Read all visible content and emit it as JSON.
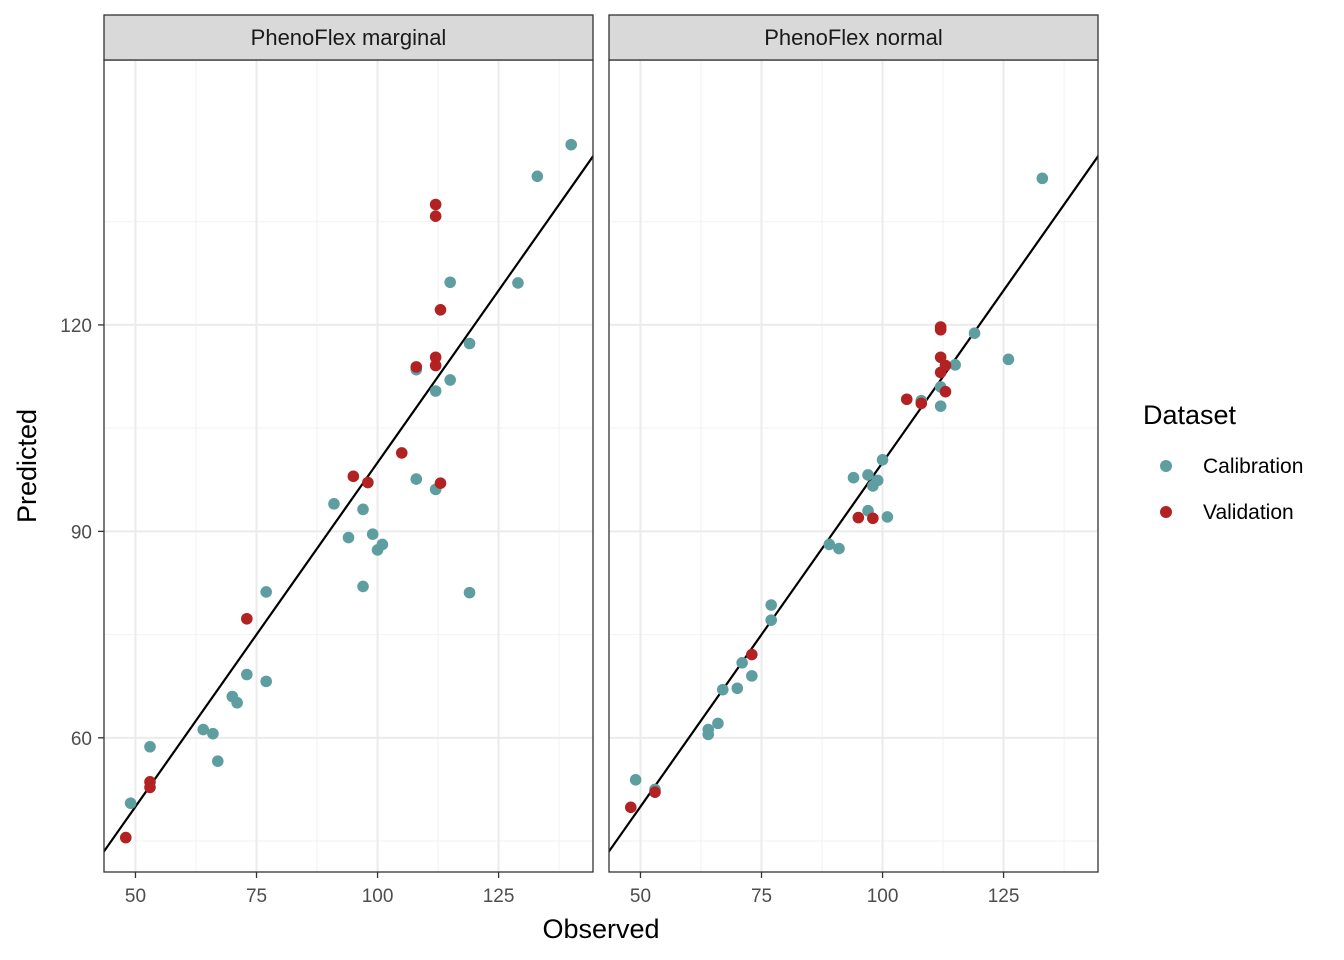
{
  "chart_data": {
    "type": "scatter",
    "xlabel": "Observed",
    "ylabel": "Predicted",
    "xlim": [
      43.5,
      144.5
    ],
    "ylim": [
      40.5,
      158.5
    ],
    "x_ticks": [
      50,
      75,
      100,
      125
    ],
    "y_ticks": [
      60,
      90,
      120
    ],
    "x_minor": [
      62.5,
      87.5,
      112.5,
      137.5
    ],
    "y_minor": [
      45,
      75,
      105,
      135
    ],
    "grid": true,
    "legend": {
      "title": "Dataset",
      "position": "right",
      "entries": [
        {
          "label": "Calibration",
          "color": "#5F9EA0"
        },
        {
          "label": "Validation",
          "color": "#B22222"
        }
      ]
    },
    "reference_line": {
      "type": "identity",
      "color": "#000000"
    },
    "panels": [
      {
        "title": "PhenoFlex marginal",
        "series": [
          {
            "name": "Calibration",
            "color": "#5F9EA0",
            "points": [
              [
                49,
                50.5
              ],
              [
                53,
                58.7
              ],
              [
                64,
                61.2
              ],
              [
                66,
                60.6
              ],
              [
                67,
                56.6
              ],
              [
                70,
                66.0
              ],
              [
                71,
                65.1
              ],
              [
                73,
                69.2
              ],
              [
                77,
                68.2
              ],
              [
                77,
                81.2
              ],
              [
                91,
                94.0
              ],
              [
                94,
                89.1
              ],
              [
                97,
                93.2
              ],
              [
                97,
                82.0
              ],
              [
                99,
                89.6
              ],
              [
                100,
                87.3
              ],
              [
                101,
                88.1
              ],
              [
                108,
                113.5
              ],
              [
                108,
                97.6
              ],
              [
                112,
                110.4
              ],
              [
                112,
                96.1
              ],
              [
                115,
                112.0
              ],
              [
                115,
                126.2
              ],
              [
                119,
                117.3
              ],
              [
                119,
                81.1
              ],
              [
                129,
                126.1
              ],
              [
                133,
                141.6
              ],
              [
                140,
                146.2
              ]
            ]
          },
          {
            "name": "Validation",
            "color": "#B22222",
            "points": [
              [
                48,
                45.5
              ],
              [
                53,
                53.6
              ],
              [
                53,
                52.8
              ],
              [
                73,
                77.3
              ],
              [
                95,
                98.0
              ],
              [
                98,
                97.1
              ],
              [
                105,
                101.4
              ],
              [
                108,
                113.9
              ],
              [
                112,
                115.3
              ],
              [
                112,
                114.1
              ],
              [
                112,
                137.5
              ],
              [
                112,
                135.8
              ],
              [
                113,
                122.2
              ],
              [
                113,
                97.0
              ]
            ]
          }
        ]
      },
      {
        "title": "PhenoFlex normal",
        "series": [
          {
            "name": "Calibration",
            "color": "#5F9EA0",
            "points": [
              [
                49,
                53.9
              ],
              [
                53,
                52.5
              ],
              [
                64,
                61.2
              ],
              [
                64,
                60.5
              ],
              [
                66,
                62.1
              ],
              [
                67,
                67.0
              ],
              [
                70,
                67.2
              ],
              [
                71,
                70.9
              ],
              [
                73,
                69.0
              ],
              [
                77,
                79.3
              ],
              [
                77,
                77.1
              ],
              [
                89,
                88.1
              ],
              [
                91,
                87.5
              ],
              [
                94,
                97.8
              ],
              [
                97,
                98.2
              ],
              [
                97,
                93.0
              ],
              [
                98,
                96.6
              ],
              [
                99,
                97.4
              ],
              [
                100,
                100.4
              ],
              [
                101,
                92.1
              ],
              [
                108,
                109.0
              ],
              [
                112,
                111.0
              ],
              [
                112,
                108.2
              ],
              [
                115,
                114.2
              ],
              [
                119,
                118.8
              ],
              [
                126,
                115.0
              ],
              [
                133,
                141.3
              ]
            ]
          },
          {
            "name": "Validation",
            "color": "#B22222",
            "points": [
              [
                48,
                49.9
              ],
              [
                53,
                52.1
              ],
              [
                73,
                72.1
              ],
              [
                95,
                92.0
              ],
              [
                98,
                91.9
              ],
              [
                105,
                109.2
              ],
              [
                108,
                108.6
              ],
              [
                112,
                119.3
              ],
              [
                112,
                119.7
              ],
              [
                112,
                115.3
              ],
              [
                112,
                113.1
              ],
              [
                113,
                114.1
              ],
              [
                113,
                110.3
              ]
            ]
          }
        ]
      }
    ]
  }
}
